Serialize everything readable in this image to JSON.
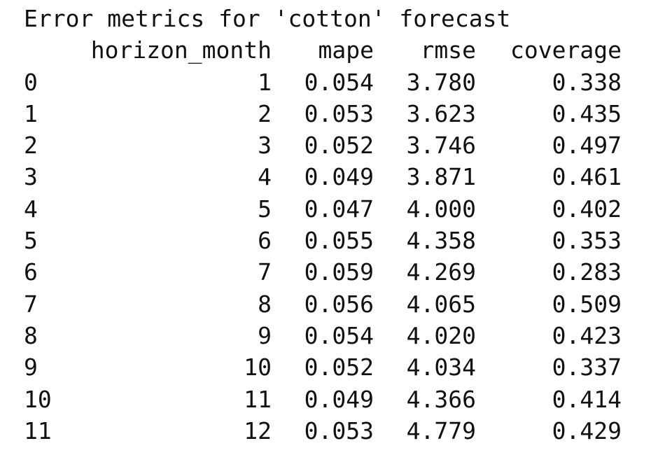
{
  "title": "Error metrics for 'cotton' forecast",
  "columns": [
    "horizon_month",
    "mape",
    "rmse",
    "coverage"
  ],
  "rows": [
    {
      "index": "0",
      "horizon_month": "1",
      "mape": "0.054",
      "rmse": "3.780",
      "coverage": "0.338"
    },
    {
      "index": "1",
      "horizon_month": "2",
      "mape": "0.053",
      "rmse": "3.623",
      "coverage": "0.435"
    },
    {
      "index": "2",
      "horizon_month": "3",
      "mape": "0.052",
      "rmse": "3.746",
      "coverage": "0.497"
    },
    {
      "index": "3",
      "horizon_month": "4",
      "mape": "0.049",
      "rmse": "3.871",
      "coverage": "0.461"
    },
    {
      "index": "4",
      "horizon_month": "5",
      "mape": "0.047",
      "rmse": "4.000",
      "coverage": "0.402"
    },
    {
      "index": "5",
      "horizon_month": "6",
      "mape": "0.055",
      "rmse": "4.358",
      "coverage": "0.353"
    },
    {
      "index": "6",
      "horizon_month": "7",
      "mape": "0.059",
      "rmse": "4.269",
      "coverage": "0.283"
    },
    {
      "index": "7",
      "horizon_month": "8",
      "mape": "0.056",
      "rmse": "4.065",
      "coverage": "0.509"
    },
    {
      "index": "8",
      "horizon_month": "9",
      "mape": "0.054",
      "rmse": "4.020",
      "coverage": "0.423"
    },
    {
      "index": "9",
      "horizon_month": "10",
      "mape": "0.052",
      "rmse": "4.034",
      "coverage": "0.337"
    },
    {
      "index": "10",
      "horizon_month": "11",
      "mape": "0.049",
      "rmse": "4.366",
      "coverage": "0.414"
    },
    {
      "index": "11",
      "horizon_month": "12",
      "mape": "0.053",
      "rmse": "4.779",
      "coverage": "0.429"
    }
  ]
}
